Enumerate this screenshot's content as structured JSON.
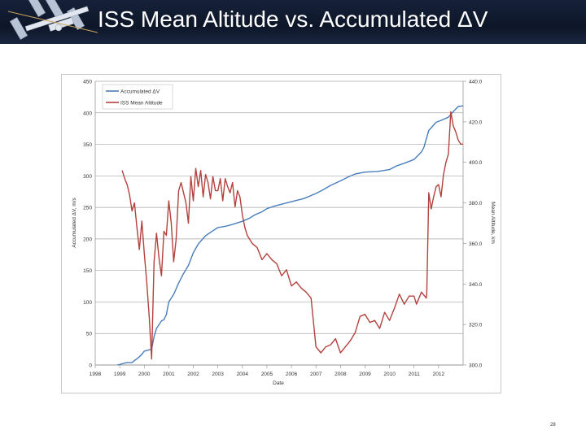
{
  "slide": {
    "title": "ISS Mean Altitude vs. Accumulated ΔV",
    "page_number": "28"
  },
  "colors": {
    "dv_line": "#4a7ebb",
    "alt_line": "#b3423f",
    "grid": "#a6a6a6",
    "header_bg": "#0d1628"
  },
  "chart_data": {
    "type": "line",
    "title": "",
    "xlabel": "Date",
    "ylabel_left": "Accumulated ΔV, m/s",
    "ylabel_right": "Mean Altitude, km",
    "xlim": [
      1998,
      2013
    ],
    "xticks": [
      "1998",
      "1999",
      "2000",
      "2001",
      "2002",
      "2003",
      "2004",
      "2005",
      "2006",
      "2007",
      "2008",
      "2009",
      "2010",
      "2011",
      "2012"
    ],
    "ylim_left": [
      0,
      450
    ],
    "yticks_left": [
      "0",
      "50",
      "100",
      "150",
      "200",
      "250",
      "300",
      "350",
      "400",
      "450"
    ],
    "ylim_right": [
      300,
      440
    ],
    "yticks_right": [
      "300.0",
      "320.0",
      "340.0",
      "360.0",
      "380.0",
      "400.0",
      "420.0",
      "440.0"
    ],
    "grid": true,
    "legend": {
      "placement": "top-left",
      "entries": [
        "Accumulated ΔV",
        "ISS Mean Altitude"
      ]
    },
    "series": [
      {
        "name": "Accumulated ΔV",
        "axis": "left",
        "x": [
          1998.9,
          1999.3,
          1999.5,
          1999.8,
          1999.9,
          2000.0,
          2000.3,
          2000.4,
          2000.5,
          2000.7,
          2000.8,
          2000.9,
          2001.0,
          2001.2,
          2001.4,
          2001.6,
          2001.8,
          2002.0,
          2002.2,
          2002.5,
          2002.8,
          2003.0,
          2003.3,
          2003.6,
          2004.0,
          2004.3,
          2004.5,
          2004.8,
          2005.0,
          2005.3,
          2005.6,
          2006.0,
          2006.5,
          2007.0,
          2007.3,
          2007.6,
          2008.0,
          2008.3,
          2008.6,
          2009.0,
          2009.5,
          2010.0,
          2010.3,
          2010.6,
          2011.0,
          2011.1,
          2011.3,
          2011.4,
          2011.6,
          2011.9,
          2012.1,
          2012.4,
          2012.6,
          2012.8,
          2013.0
        ],
        "y": [
          0,
          4,
          4,
          13,
          17,
          22,
          25,
          45,
          58,
          70,
          72,
          80,
          100,
          112,
          130,
          145,
          158,
          178,
          192,
          205,
          213,
          218,
          220,
          223,
          228,
          233,
          238,
          243,
          248,
          252,
          255,
          259,
          264,
          272,
          278,
          285,
          292,
          298,
          303,
          306,
          307,
          310,
          316,
          320,
          326,
          330,
          338,
          345,
          372,
          385,
          388,
          393,
          402,
          410,
          411
        ]
      },
      {
        "name": "ISS Mean Altitude",
        "axis": "right",
        "x": [
          1999.1,
          1999.2,
          1999.3,
          1999.4,
          1999.5,
          1999.6,
          1999.7,
          1999.8,
          1999.9,
          2000.0,
          2000.1,
          2000.2,
          2000.3,
          2000.4,
          2000.5,
          2000.6,
          2000.7,
          2000.8,
          2000.9,
          2001.0,
          2001.1,
          2001.2,
          2001.3,
          2001.4,
          2001.5,
          2001.6,
          2001.7,
          2001.8,
          2001.9,
          2002.0,
          2002.1,
          2002.2,
          2002.3,
          2002.4,
          2002.5,
          2002.6,
          2002.7,
          2002.8,
          2002.9,
          2003.0,
          2003.1,
          2003.2,
          2003.3,
          2003.4,
          2003.5,
          2003.6,
          2003.7,
          2003.8,
          2003.9,
          2004.0,
          2004.1,
          2004.2,
          2004.4,
          2004.6,
          2004.8,
          2005.0,
          2005.2,
          2005.4,
          2005.6,
          2005.8,
          2006.0,
          2006.2,
          2006.4,
          2006.6,
          2006.8,
          2007.0,
          2007.2,
          2007.4,
          2007.6,
          2007.8,
          2008.0,
          2008.2,
          2008.4,
          2008.6,
          2008.8,
          2009.0,
          2009.2,
          2009.4,
          2009.6,
          2009.8,
          2010.0,
          2010.2,
          2010.4,
          2010.6,
          2010.8,
          2011.0,
          2011.1,
          2011.3,
          2011.5,
          2011.52,
          2011.6,
          2011.7,
          2011.8,
          2011.9,
          2012.0,
          2012.1,
          2012.2,
          2012.3,
          2012.4,
          2012.5,
          2012.6,
          2012.7,
          2012.8,
          2012.9,
          2013.0
        ],
        "y": [
          396,
          392,
          389,
          384,
          376,
          380,
          368,
          357,
          371,
          355,
          341,
          324,
          303,
          351,
          365,
          353,
          344,
          366,
          364,
          381,
          370,
          351,
          362,
          386,
          390,
          385,
          380,
          370,
          393,
          381,
          397,
          388,
          396,
          383,
          394,
          390,
          382,
          393,
          386,
          386,
          392,
          381,
          392,
          388,
          385,
          390,
          378,
          386,
          383,
          374,
          368,
          364,
          360,
          358,
          352,
          355,
          352,
          350,
          344,
          347,
          339,
          341,
          338,
          336,
          333,
          309,
          306,
          309,
          310,
          313,
          306,
          309,
          312,
          316,
          324,
          325,
          321,
          322,
          318,
          326,
          322,
          328,
          335,
          330,
          334,
          334,
          330,
          336,
          333,
          336,
          385,
          377,
          383,
          388,
          389,
          383,
          394,
          400,
          404,
          425,
          418,
          415,
          411,
          409,
          409
        ]
      }
    ]
  }
}
